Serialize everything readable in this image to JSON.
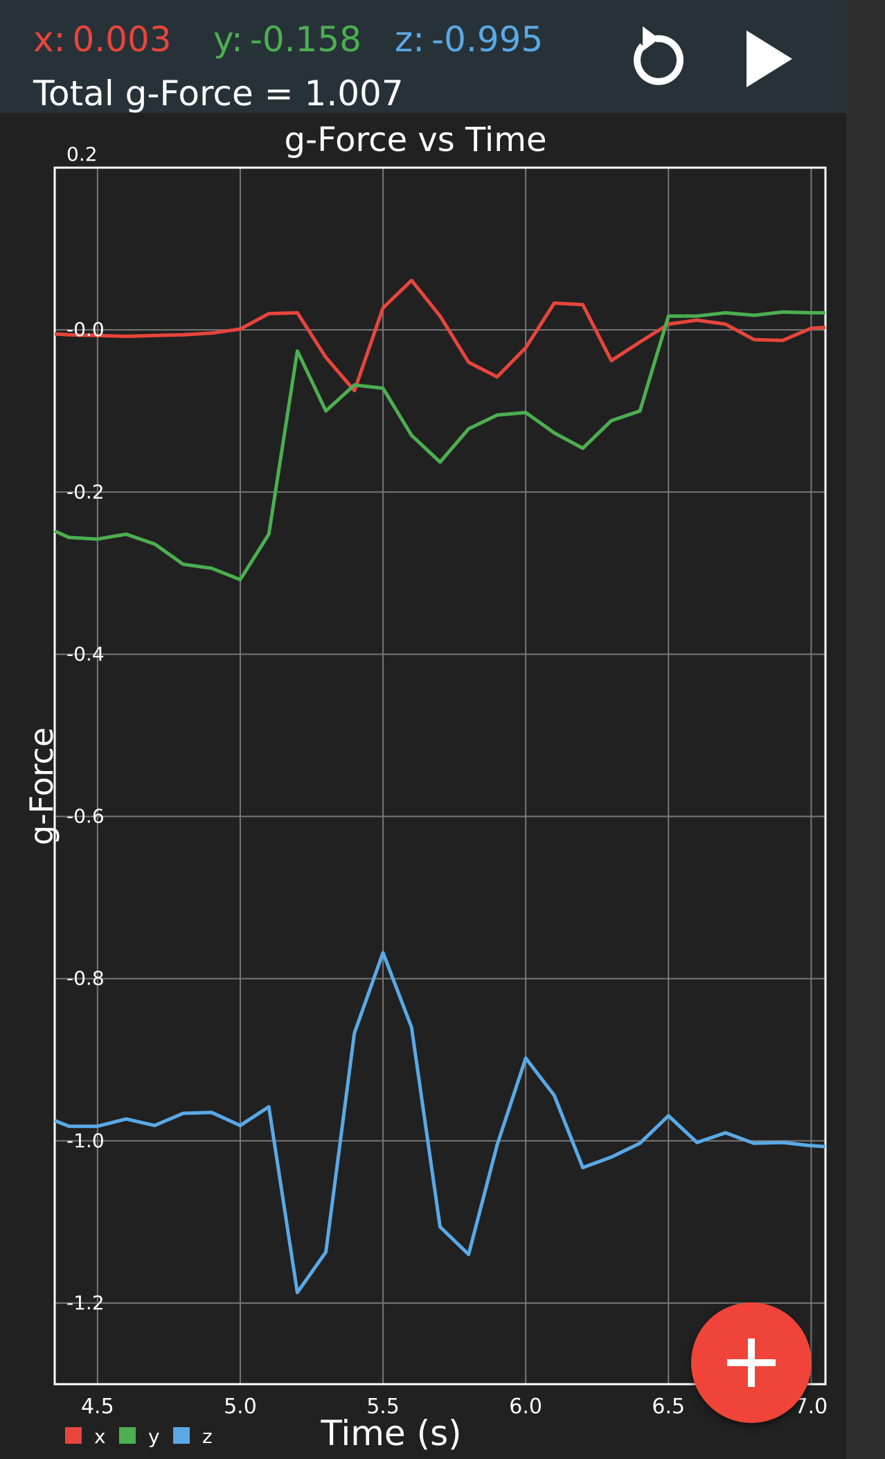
{
  "readouts": {
    "x_label": "x:",
    "x_value": "0.003",
    "y_label": "y:",
    "y_value": "-0.158",
    "z_label": "z:",
    "z_value": "-0.995",
    "total_label": "Total g-Force =",
    "total_value": "1.007"
  },
  "icons": {
    "reset": "reset-icon",
    "play": "play-icon",
    "add": "plus-icon"
  },
  "colors": {
    "header_bg": "#273238",
    "x": "#e8453c",
    "y": "#4caf50",
    "z": "#5aa9e6",
    "fab": "#f0443a"
  },
  "chart_data": {
    "type": "line",
    "title": "g-Force vs Time",
    "xlabel": "Time (s)",
    "ylabel": "g-Force",
    "xlim": [
      4.35,
      7.05
    ],
    "ylim": [
      -1.3,
      0.2
    ],
    "x_ticks": [
      "4.5",
      "5.0",
      "5.5",
      "6.0",
      "6.5",
      "7.0"
    ],
    "y_ticks": [
      "0.2",
      "-0.0",
      "-0.2",
      "-0.4",
      "-0.6",
      "-0.8",
      "-1.0",
      "-1.2"
    ],
    "grid": true,
    "legend": "bottom-left",
    "x": [
      4.35,
      4.4,
      4.5,
      4.6,
      4.7,
      4.8,
      4.9,
      5.0,
      5.1,
      5.2,
      5.3,
      5.4,
      5.5,
      5.6,
      5.7,
      5.8,
      5.9,
      6.0,
      6.1,
      6.2,
      6.3,
      6.4,
      6.5,
      6.6,
      6.7,
      6.8,
      6.9,
      7.0,
      7.05
    ],
    "series": [
      {
        "name": "x",
        "color": "#e8453c",
        "values": [
          -0.005,
          -0.006,
          -0.007,
          -0.008,
          -0.007,
          -0.006,
          -0.004,
          0.001,
          0.02,
          0.021,
          -0.034,
          -0.075,
          0.027,
          0.061,
          0.017,
          -0.04,
          -0.058,
          -0.022,
          0.033,
          0.031,
          -0.038,
          -0.015,
          0.007,
          0.012,
          0.007,
          -0.012,
          -0.013,
          0.002,
          0.003
        ]
      },
      {
        "name": "y",
        "color": "#4caf50",
        "values": [
          -0.248,
          -0.256,
          -0.258,
          -0.252,
          -0.264,
          -0.289,
          -0.294,
          -0.308,
          -0.252,
          -0.026,
          -0.1,
          -0.068,
          -0.072,
          -0.13,
          -0.163,
          -0.122,
          -0.105,
          -0.102,
          -0.127,
          -0.146,
          -0.112,
          -0.1,
          0.017,
          0.017,
          0.021,
          0.018,
          0.022,
          0.021,
          0.021
        ]
      },
      {
        "name": "z",
        "color": "#5aa9e6",
        "values": [
          -0.975,
          -0.982,
          -0.982,
          -0.973,
          -0.981,
          -0.966,
          -0.965,
          -0.981,
          -0.958,
          -1.187,
          -1.137,
          -0.867,
          -0.768,
          -0.86,
          -1.106,
          -1.14,
          -1.005,
          -0.898,
          -0.944,
          -1.033,
          -1.02,
          -1.003,
          -0.969,
          -1.002,
          -0.99,
          -1.003,
          -1.002,
          -1.006,
          -1.007
        ]
      }
    ]
  }
}
